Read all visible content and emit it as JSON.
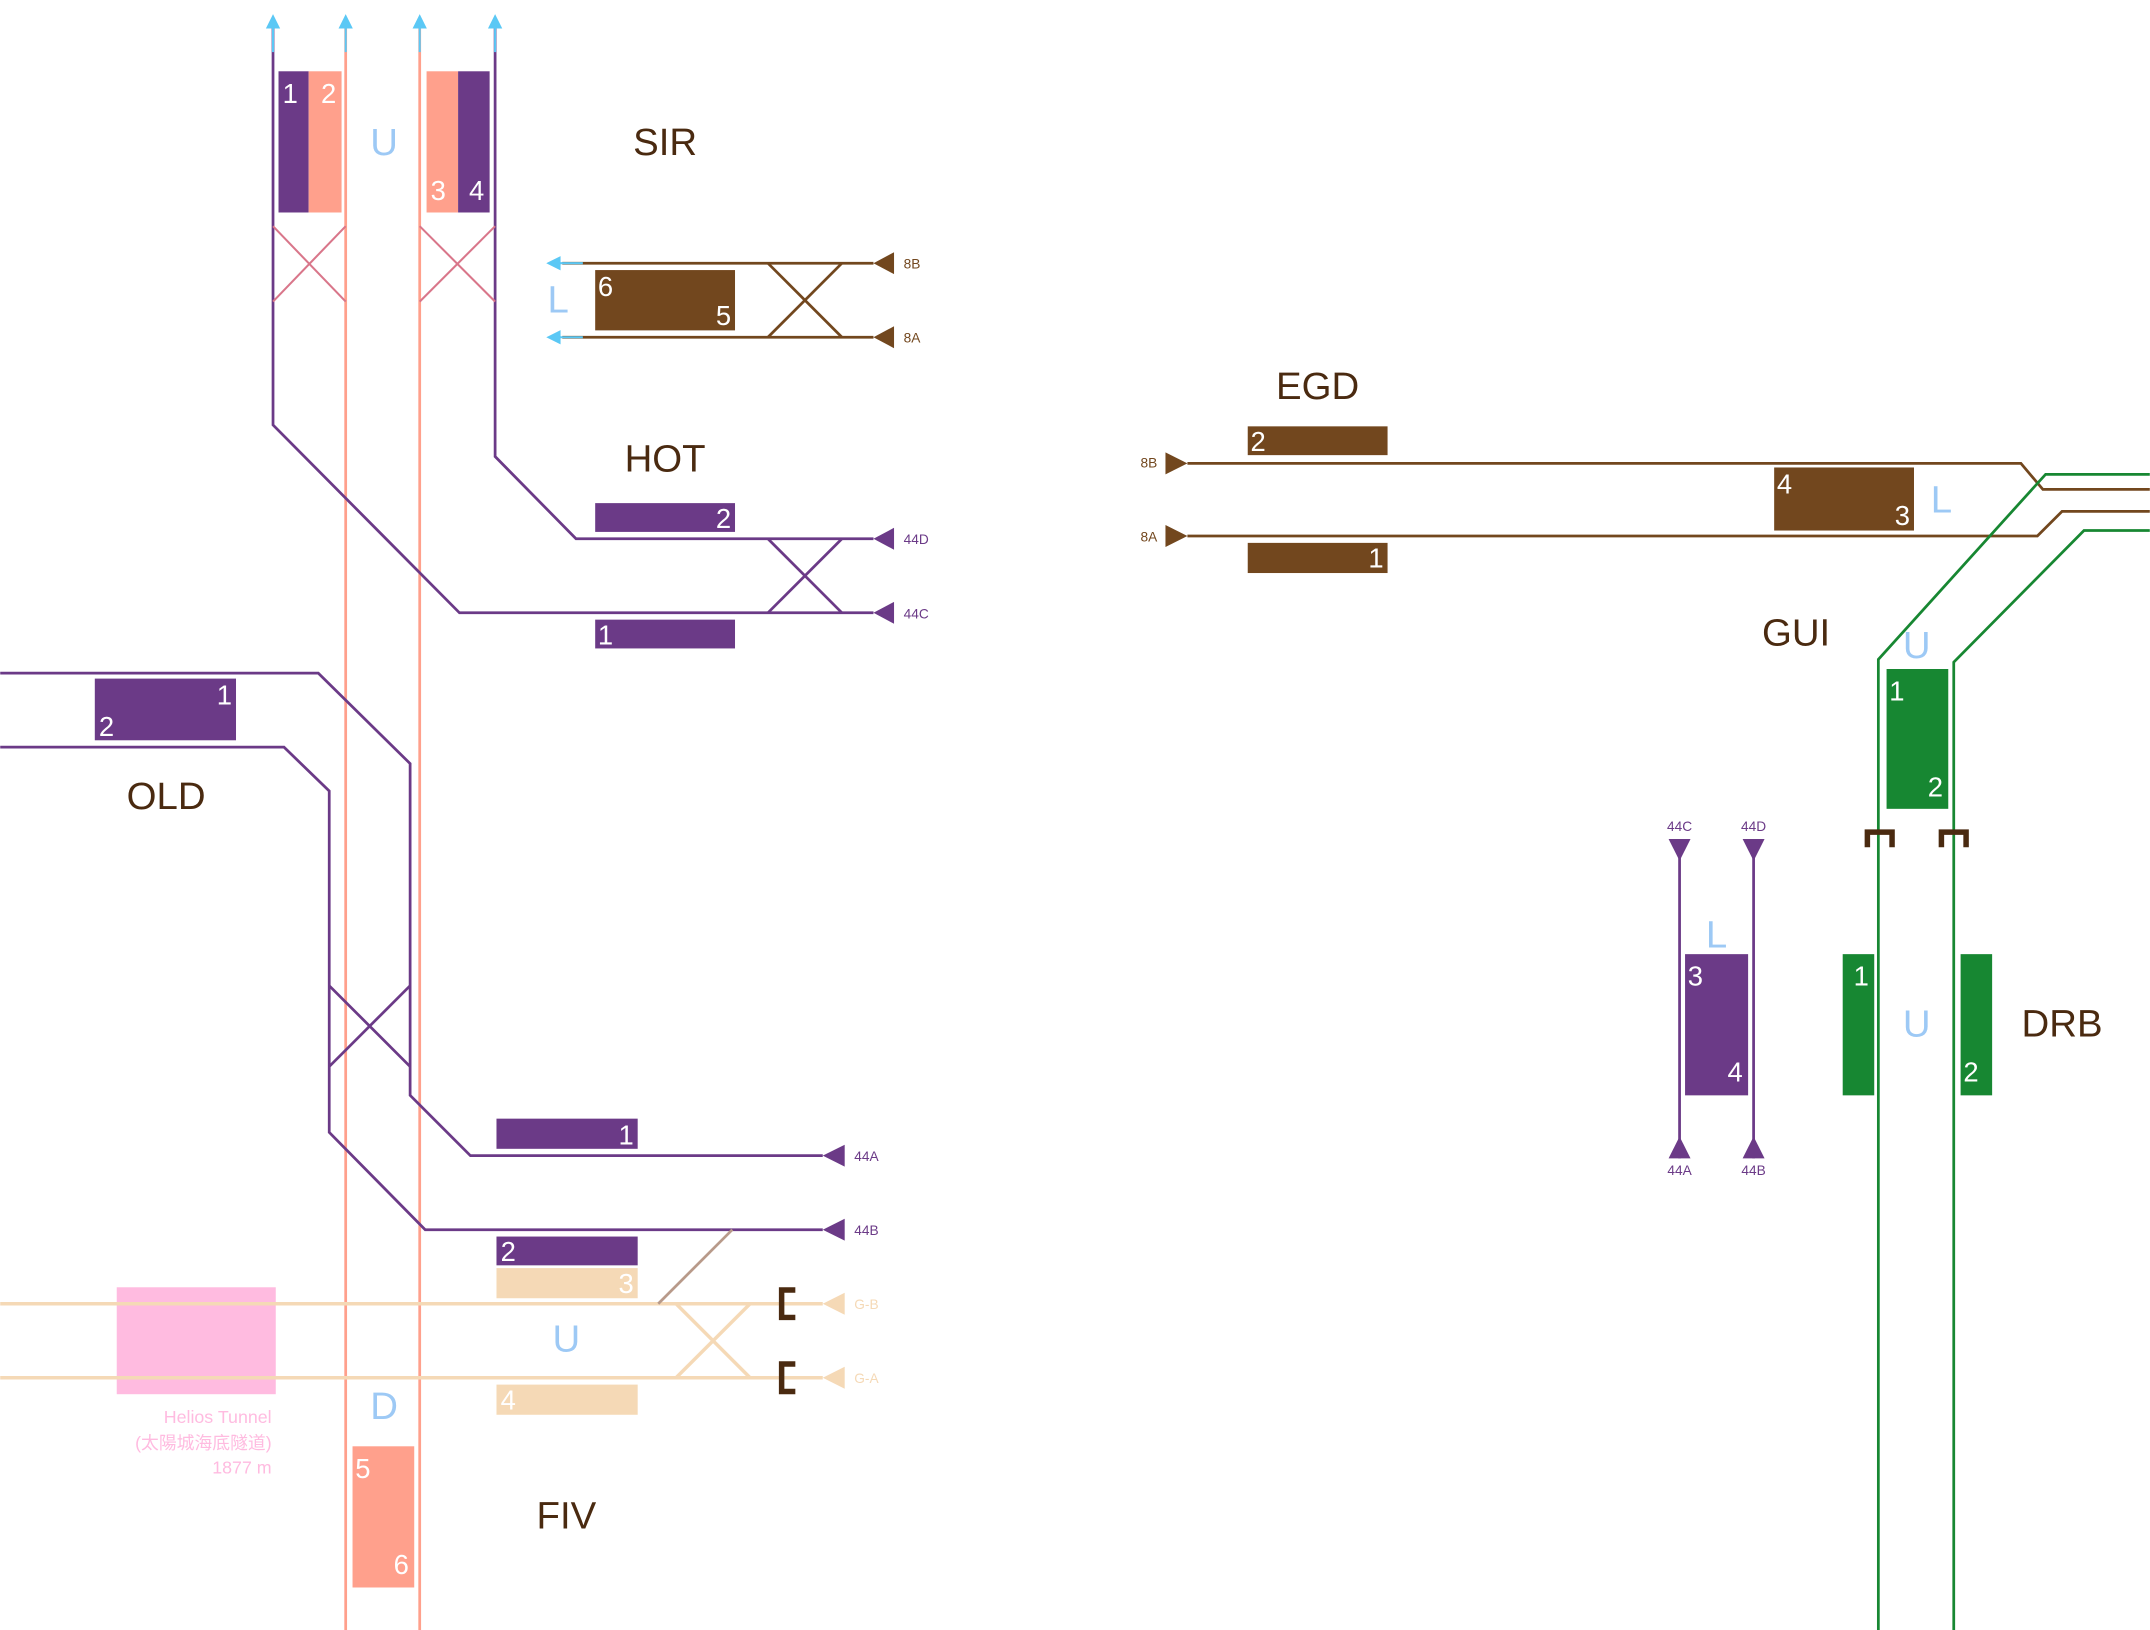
{
  "colors": {
    "purple": "#6b3a87",
    "salmon": "#ffa08c",
    "brown": "#72471e",
    "green": "#178732",
    "beige": "#f5d9b6",
    "tunnel": "#ffbbe0",
    "arrow": "#5bc8f5",
    "level_label": "#9dc9f5",
    "station_label": "#4a2a10",
    "buffer": "#4a2a10"
  },
  "stations": {
    "sir": {
      "name": "SIR",
      "level": "L",
      "platforms": [
        "6",
        "5"
      ],
      "tracks": [
        "8B",
        "8A"
      ]
    },
    "upper_left": {
      "level": "U",
      "platforms": [
        "1",
        "2",
        "3",
        "4"
      ]
    },
    "hot": {
      "name": "HOT",
      "platforms": [
        "2",
        "1"
      ],
      "tracks": [
        "44D",
        "44C"
      ]
    },
    "old": {
      "name": "OLD",
      "platforms": [
        "1",
        "2"
      ],
      "lower_platforms": [
        "1",
        "2"
      ],
      "tracks": [
        "44A",
        "44B"
      ]
    },
    "fiv": {
      "name": "FIV",
      "level_u": "U",
      "level_d": "D",
      "platforms": [
        "3",
        "4",
        "5",
        "6"
      ],
      "tracks": [
        "G-B",
        "G-A"
      ]
    },
    "tunnel": {
      "name": "Helios Tunnel",
      "chinese": "(太陽城海底隧道)",
      "length": "1877 m"
    },
    "egd": {
      "name": "EGD",
      "platforms": [
        "2",
        "1"
      ],
      "tracks": [
        "8B",
        "8A"
      ]
    },
    "gui": {
      "name": "GUI",
      "level_l": "L",
      "level_u": "U",
      "platforms_l": [
        "4",
        "3"
      ],
      "platforms_u": [
        "1",
        "2"
      ]
    },
    "drb": {
      "name": "DRB",
      "level_u": "U",
      "level_l": "L",
      "platforms_u": [
        "1",
        "2"
      ],
      "platforms_l": [
        "3",
        "4"
      ],
      "tracks_top": [
        "44C",
        "44D"
      ],
      "tracks_bottom": [
        "44A",
        "44B"
      ]
    }
  }
}
